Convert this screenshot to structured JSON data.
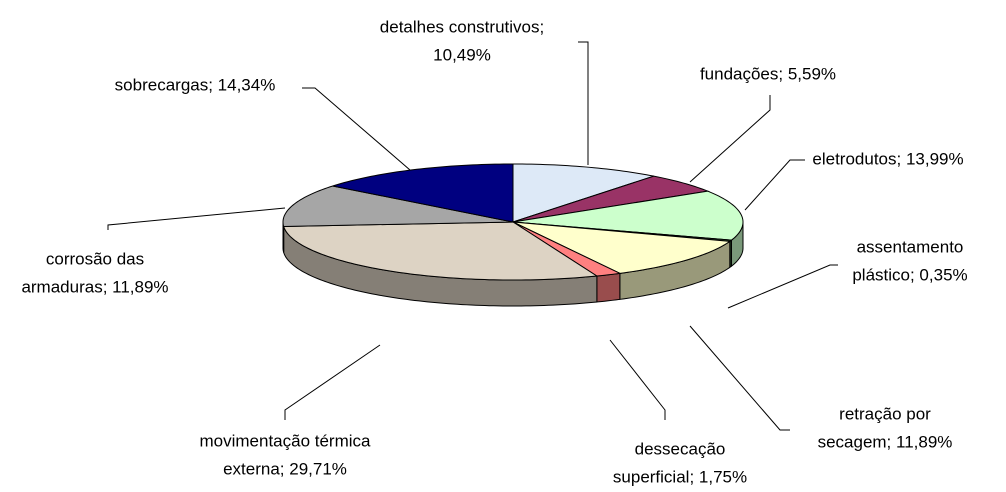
{
  "chart_data": {
    "type": "pie3d",
    "values": [
      10.49,
      5.59,
      13.99,
      0.35,
      11.89,
      1.75,
      29.71,
      11.89,
      14.34
    ],
    "value_labels": [
      [
        "detalhes construtivos;",
        "10,49%"
      ],
      [
        "fundações; 5,59%"
      ],
      [
        "eletrodutos; 13,99%"
      ],
      [
        "assentamento",
        "plástico; 0,35%"
      ],
      [
        "retração por",
        "secagem; 11,89%"
      ],
      [
        "dessecação",
        "superficial; 1,75%"
      ],
      [
        "movimentação térmica",
        "externa; 29,71%"
      ],
      [
        "corrosão das",
        "armaduras; 11,89%"
      ],
      [
        "sobrecargas; 14,34%"
      ]
    ],
    "colors": [
      "#dde9f7",
      "#993366",
      "#ccffcc",
      "#3f6f3f",
      "#ffffcc",
      "#ff8080",
      "#ddd3c4",
      "#a6a6a6",
      "#000080"
    ]
  }
}
